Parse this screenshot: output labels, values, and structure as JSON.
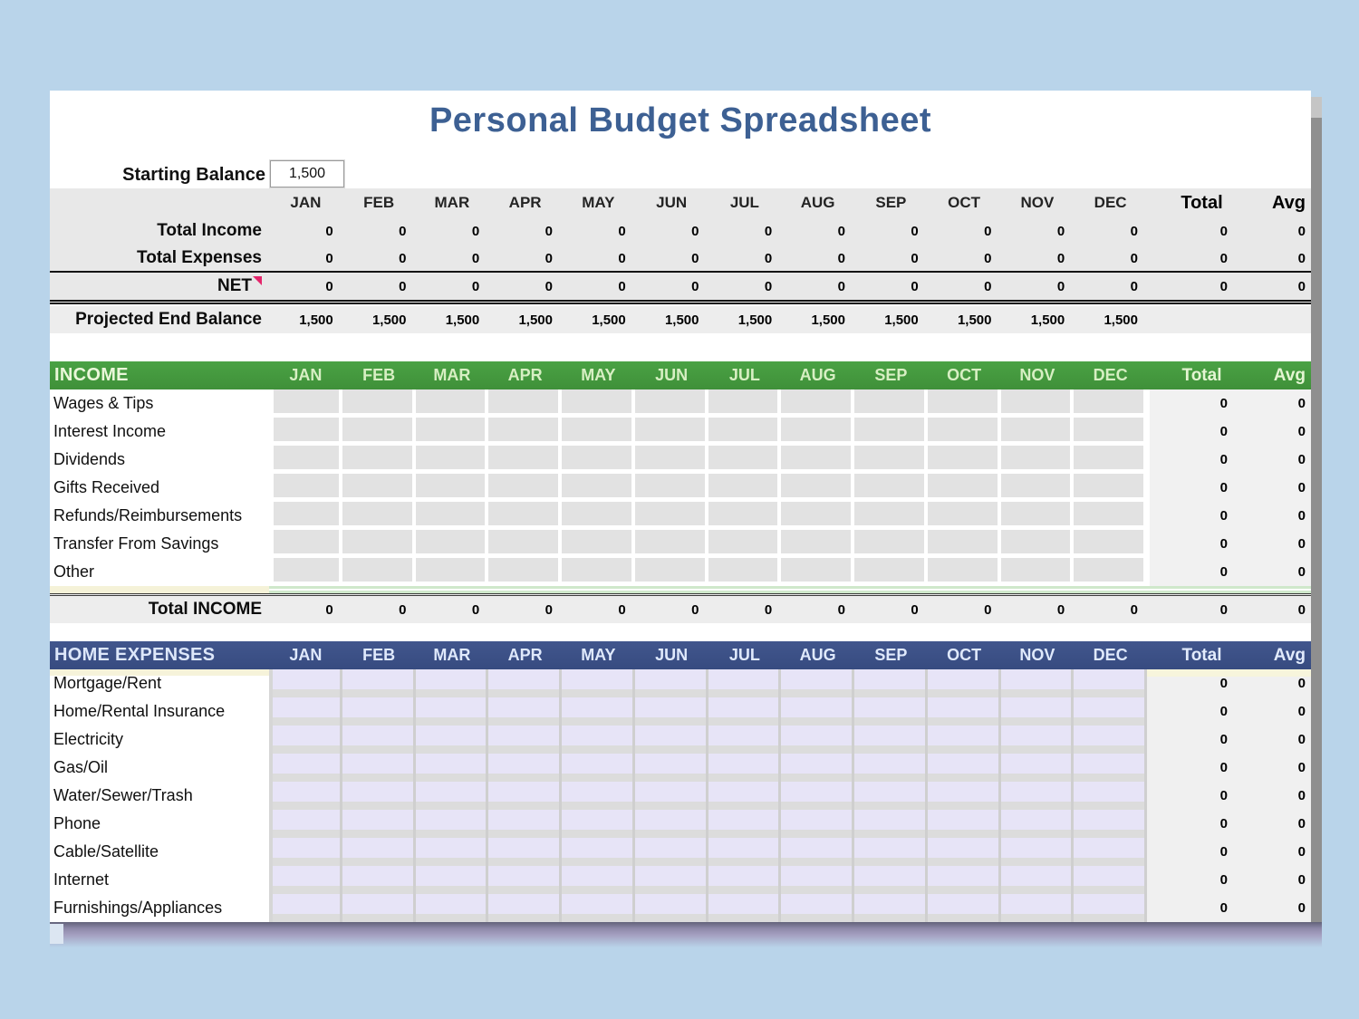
{
  "title": "Personal Budget Spreadsheet",
  "starting_balance": {
    "label": "Starting Balance",
    "value": "1,500"
  },
  "months": [
    "JAN",
    "FEB",
    "MAR",
    "APR",
    "MAY",
    "JUN",
    "JUL",
    "AUG",
    "SEP",
    "OCT",
    "NOV",
    "DEC"
  ],
  "columns": {
    "total_label": "Total",
    "avg_label": "Avg"
  },
  "summary": {
    "rows": [
      {
        "label": "Total Income",
        "values": [
          "0",
          "0",
          "0",
          "0",
          "0",
          "0",
          "0",
          "0",
          "0",
          "0",
          "0",
          "0"
        ],
        "total": "0",
        "avg": "0",
        "note": false
      },
      {
        "label": "Total Expenses",
        "values": [
          "0",
          "0",
          "0",
          "0",
          "0",
          "0",
          "0",
          "0",
          "0",
          "0",
          "0",
          "0"
        ],
        "total": "0",
        "avg": "0",
        "note": false
      },
      {
        "label": "NET",
        "values": [
          "0",
          "0",
          "0",
          "0",
          "0",
          "0",
          "0",
          "0",
          "0",
          "0",
          "0",
          "0"
        ],
        "total": "0",
        "avg": "0",
        "note": true
      },
      {
        "label": "Projected End Balance",
        "values": [
          "1,500",
          "1,500",
          "1,500",
          "1,500",
          "1,500",
          "1,500",
          "1,500",
          "1,500",
          "1,500",
          "1,500",
          "1,500",
          "1,500"
        ],
        "total": "",
        "avg": "",
        "note": false
      }
    ]
  },
  "income": {
    "title": "INCOME",
    "rows": [
      {
        "label": "Wages & Tips",
        "total": "0",
        "avg": "0"
      },
      {
        "label": "Interest Income",
        "total": "0",
        "avg": "0"
      },
      {
        "label": "Dividends",
        "total": "0",
        "avg": "0"
      },
      {
        "label": "Gifts Received",
        "total": "0",
        "avg": "0"
      },
      {
        "label": "Refunds/Reimbursements",
        "total": "0",
        "avg": "0"
      },
      {
        "label": "Transfer From Savings",
        "total": "0",
        "avg": "0"
      },
      {
        "label": "Other",
        "total": "0",
        "avg": "0"
      }
    ],
    "total_row": {
      "label": "Total INCOME",
      "values": [
        "0",
        "0",
        "0",
        "0",
        "0",
        "0",
        "0",
        "0",
        "0",
        "0",
        "0",
        "0"
      ],
      "total": "0",
      "avg": "0"
    }
  },
  "expenses": {
    "title": "HOME EXPENSES",
    "rows": [
      {
        "label": "Mortgage/Rent",
        "total": "0",
        "avg": "0"
      },
      {
        "label": "Home/Rental Insurance",
        "total": "0",
        "avg": "0"
      },
      {
        "label": "Electricity",
        "total": "0",
        "avg": "0"
      },
      {
        "label": "Gas/Oil",
        "total": "0",
        "avg": "0"
      },
      {
        "label": "Water/Sewer/Trash",
        "total": "0",
        "avg": "0"
      },
      {
        "label": "Phone",
        "total": "0",
        "avg": "0"
      },
      {
        "label": "Cable/Satellite",
        "total": "0",
        "avg": "0"
      },
      {
        "label": "Internet",
        "total": "0",
        "avg": "0"
      },
      {
        "label": "Furnishings/Appliances",
        "total": "0",
        "avg": "0"
      }
    ]
  },
  "colors": {
    "page_bg": "#b9d4ea",
    "income_header": "#459a3f",
    "expense_header": "#3c5187",
    "title_text": "#3d6093",
    "note_marker": "#e4256b"
  }
}
